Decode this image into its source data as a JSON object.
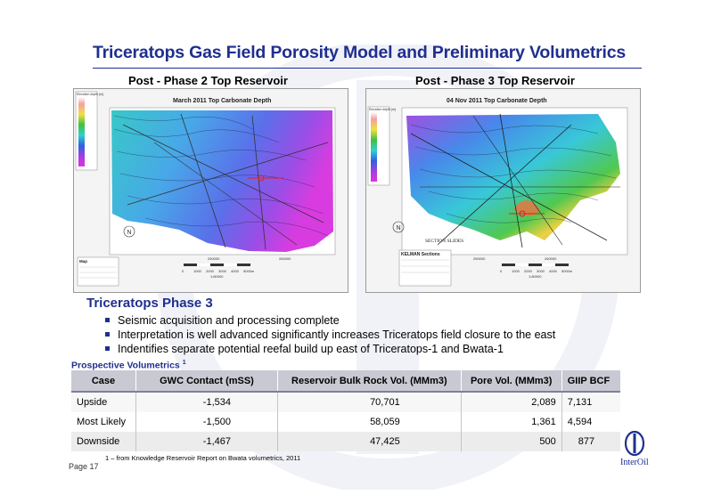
{
  "page": {
    "title": "Triceratops Gas Field Porosity Model and Preliminary Volumetrics",
    "page_number": "Page 17"
  },
  "maps": [
    {
      "caption": "Post - Phase 2 Top Reservoir",
      "inner_title": "March 2011 Top Carbonate Depth",
      "legend_title": "Elevation depth [m]",
      "info_title": "Map",
      "scale_ticks": [
        "0",
        "1000",
        "2000",
        "3000",
        "4000",
        "5000m"
      ],
      "scale_ratio": "1:80000",
      "x_ticks": [
        "250000",
        "260000"
      ]
    },
    {
      "caption": "Post - Phase 3 Top Reservoir",
      "inner_title": "04 Nov 2011 Top Carbonate Depth",
      "legend_title": "Elevation depth [m]",
      "info_title": "KELMAN Sections",
      "section_label": "SECTION SLIDES",
      "scale_ticks": [
        "0",
        "1000",
        "2000",
        "3000",
        "4000",
        "5000m"
      ],
      "scale_ratio": "1:80000",
      "x_ticks": [
        "250000",
        "260000"
      ]
    }
  ],
  "section": {
    "title": "Triceratops Phase 3",
    "bullets": [
      "Seismic acquisition and processing complete",
      "Interpretation is well advanced significantly increases Triceratops field closure to the east",
      "Indentifies separate potential reefal build up east of Triceratops-1 and Bwata-1"
    ]
  },
  "volumetrics": {
    "title": "Prospective Volumetrics",
    "title_sup": "1",
    "headers": [
      "Case",
      "GWC Contact (mSS)",
      "Reservoir Bulk Rock Vol. (MMm3)",
      "Pore Vol. (MMm3)",
      "GIIP BCF"
    ],
    "rows": [
      [
        "Upside",
        "-1,534",
        "70,701",
        "2,089",
        "7,131"
      ],
      [
        "Most Likely",
        "-1,500",
        "58,059",
        "1,361",
        "4,594"
      ],
      [
        "Downside",
        "-1,467",
        "47,425",
        "500",
        "877"
      ]
    ],
    "footnote": "1 – from Knowledge Reservoir Report on Bwata volumetrics, 2011"
  },
  "logo": {
    "text": "InterOil"
  }
}
